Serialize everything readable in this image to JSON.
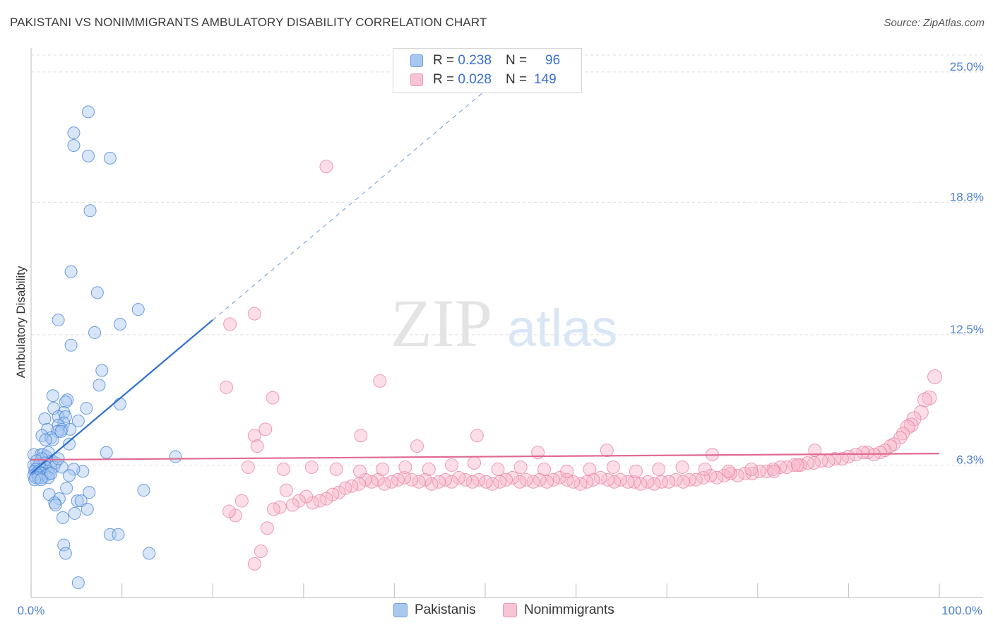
{
  "title": "PAKISTANI VS NONIMMIGRANTS AMBULATORY DISABILITY CORRELATION CHART",
  "source": "Source: ZipAtlas.com",
  "watermark": {
    "zip": "ZIP",
    "atlas": "atlas"
  },
  "legend_top": {
    "rows": [
      {
        "r_label": "R =",
        "r_value": "0.238",
        "n_label": "N =",
        "n_value": "96",
        "color": "#a9c8f0"
      },
      {
        "r_label": "R =",
        "r_value": "0.028",
        "n_label": "N =",
        "n_value": "149",
        "color": "#f7b6ca"
      }
    ]
  },
  "legend_bottom": [
    {
      "label": "Pakistanis",
      "color": "#a9c8f0"
    },
    {
      "label": "Nonimmigrants",
      "color": "#f7b6ca"
    }
  ],
  "chart_data": {
    "type": "scatter",
    "ylabel": "Ambulatory Disability",
    "xlim": [
      0,
      100
    ],
    "ylim": [
      0,
      25.8
    ],
    "x_tick_labels": [
      "0.0%",
      "100.0%"
    ],
    "y_ticks": [
      6.3,
      12.5,
      18.8,
      25.0
    ],
    "y_tick_labels": [
      "6.3%",
      "12.5%",
      "18.8%",
      "25.0%"
    ],
    "grid": "horizontal dashed",
    "colors": {
      "blue": "#4a86d8",
      "blue_fill": "#a9c8f0",
      "pink": "#e8769a",
      "pink_fill": "#f7b6ca"
    },
    "series": [
      {
        "name": "Pakistanis",
        "trend": {
          "x": [
            0,
            20
          ],
          "y": [
            5.9,
            13.2
          ],
          "dashed_to": [
            53,
            25.2
          ]
        },
        "points": [
          [
            6.3,
            23.1
          ],
          [
            4.7,
            22.1
          ],
          [
            4.7,
            21.5
          ],
          [
            6.3,
            21.0
          ],
          [
            8.7,
            20.9
          ],
          [
            6.5,
            18.4
          ],
          [
            4.4,
            15.5
          ],
          [
            7.3,
            14.5
          ],
          [
            11.8,
            13.7
          ],
          [
            3.0,
            13.2
          ],
          [
            9.8,
            13.0
          ],
          [
            7.0,
            12.6
          ],
          [
            4.4,
            12.0
          ],
          [
            7.8,
            10.8
          ],
          [
            7.5,
            10.1
          ],
          [
            2.4,
            9.6
          ],
          [
            4.0,
            9.4
          ],
          [
            3.8,
            9.3
          ],
          [
            9.8,
            9.2
          ],
          [
            2.5,
            9.0
          ],
          [
            6.1,
            9.0
          ],
          [
            3.6,
            8.8
          ],
          [
            1.5,
            8.5
          ],
          [
            3.0,
            8.6
          ],
          [
            3.8,
            8.6
          ],
          [
            5.2,
            8.4
          ],
          [
            3.6,
            8.3
          ],
          [
            3.0,
            8.2
          ],
          [
            1.8,
            8.0
          ],
          [
            3.4,
            8.0
          ],
          [
            4.3,
            8.0
          ],
          [
            2.9,
            7.9
          ],
          [
            3.3,
            7.9
          ],
          [
            1.2,
            7.7
          ],
          [
            2.2,
            7.6
          ],
          [
            2.4,
            7.5
          ],
          [
            1.6,
            7.5
          ],
          [
            4.2,
            7.3
          ],
          [
            8.3,
            6.9
          ],
          [
            0.3,
            6.8
          ],
          [
            1.1,
            6.8
          ],
          [
            1.3,
            6.8
          ],
          [
            1.7,
            6.7
          ],
          [
            1.9,
            6.9
          ],
          [
            1.2,
            6.6
          ],
          [
            0.6,
            6.5
          ],
          [
            2.3,
            6.5
          ],
          [
            2.7,
            6.4
          ],
          [
            1.5,
            6.4
          ],
          [
            0.3,
            6.3
          ],
          [
            0.9,
            6.3
          ],
          [
            2.5,
            6.2
          ],
          [
            1.6,
            6.2
          ],
          [
            3.4,
            6.2
          ],
          [
            0.5,
            6.1
          ],
          [
            1.2,
            6.1
          ],
          [
            1.8,
            6.0
          ],
          [
            0.4,
            6.0
          ],
          [
            0.8,
            6.0
          ],
          [
            1.4,
            5.9
          ],
          [
            0.6,
            5.9
          ],
          [
            1.1,
            5.9
          ],
          [
            2.0,
            5.9
          ],
          [
            0.3,
            5.8
          ],
          [
            0.9,
            5.8
          ],
          [
            1.6,
            5.8
          ],
          [
            0.5,
            5.7
          ],
          [
            1.2,
            5.7
          ],
          [
            0.8,
            5.7
          ],
          [
            1.9,
            5.7
          ],
          [
            0.4,
            5.6
          ],
          [
            1.1,
            5.6
          ],
          [
            5.7,
            6.0
          ],
          [
            15.9,
            6.7
          ],
          [
            4.7,
            6.1
          ],
          [
            3.9,
            5.2
          ],
          [
            6.4,
            5.0
          ],
          [
            12.4,
            5.1
          ],
          [
            2.0,
            4.9
          ],
          [
            3.1,
            4.7
          ],
          [
            5.1,
            4.6
          ],
          [
            5.5,
            4.6
          ],
          [
            2.6,
            4.5
          ],
          [
            2.7,
            4.4
          ],
          [
            6.2,
            4.2
          ],
          [
            4.8,
            4.0
          ],
          [
            3.5,
            3.8
          ],
          [
            8.7,
            3.0
          ],
          [
            9.6,
            3.0
          ],
          [
            3.6,
            2.5
          ],
          [
            3.8,
            2.1
          ],
          [
            13.0,
            2.1
          ],
          [
            5.2,
            0.7
          ],
          [
            3.0,
            6.6
          ],
          [
            2.2,
            5.9
          ],
          [
            4.2,
            5.8
          ]
        ]
      },
      {
        "name": "Nonimmigrants",
        "trend": {
          "x": [
            0,
            100
          ],
          "y": [
            6.55,
            6.85
          ]
        },
        "points": [
          [
            32.5,
            20.5
          ],
          [
            21.9,
            13.0
          ],
          [
            24.6,
            13.5
          ],
          [
            21.5,
            10.0
          ],
          [
            26.6,
            9.5
          ],
          [
            38.4,
            10.3
          ],
          [
            25.8,
            8.0
          ],
          [
            24.6,
            7.7
          ],
          [
            24.9,
            7.2
          ],
          [
            36.3,
            7.7
          ],
          [
            42.5,
            7.2
          ],
          [
            49.1,
            7.7
          ],
          [
            55.8,
            6.9
          ],
          [
            63.4,
            7.0
          ],
          [
            75.0,
            6.8
          ],
          [
            86.3,
            7.0
          ],
          [
            99.5,
            10.5
          ],
          [
            98.9,
            9.5
          ],
          [
            98.4,
            9.4
          ],
          [
            98.0,
            8.8
          ],
          [
            97.2,
            8.5
          ],
          [
            96.9,
            8.2
          ],
          [
            96.5,
            8.1
          ],
          [
            96.0,
            7.8
          ],
          [
            95.7,
            7.6
          ],
          [
            95.0,
            7.3
          ],
          [
            94.6,
            7.2
          ],
          [
            94.0,
            7.0
          ],
          [
            93.5,
            6.9
          ],
          [
            92.8,
            6.8
          ],
          [
            92.1,
            6.9
          ],
          [
            91.6,
            6.9
          ],
          [
            90.8,
            6.8
          ],
          [
            90.0,
            6.7
          ],
          [
            89.3,
            6.6
          ],
          [
            88.5,
            6.6
          ],
          [
            87.8,
            6.5
          ],
          [
            87.0,
            6.5
          ],
          [
            86.2,
            6.4
          ],
          [
            85.5,
            6.4
          ],
          [
            84.7,
            6.3
          ],
          [
            84.0,
            6.3
          ],
          [
            83.2,
            6.2
          ],
          [
            82.5,
            6.2
          ],
          [
            81.7,
            6.1
          ],
          [
            81.0,
            6.0
          ],
          [
            80.2,
            6.0
          ],
          [
            79.4,
            5.9
          ],
          [
            78.6,
            5.9
          ],
          [
            77.8,
            5.8
          ],
          [
            77.0,
            5.9
          ],
          [
            76.3,
            5.8
          ],
          [
            75.5,
            5.7
          ],
          [
            74.8,
            5.8
          ],
          [
            74.0,
            5.7
          ],
          [
            73.2,
            5.6
          ],
          [
            72.5,
            5.6
          ],
          [
            71.8,
            5.5
          ],
          [
            71.0,
            5.6
          ],
          [
            70.2,
            5.5
          ],
          [
            69.4,
            5.5
          ],
          [
            68.6,
            5.4
          ],
          [
            67.9,
            5.5
          ],
          [
            67.1,
            5.4
          ],
          [
            66.4,
            5.5
          ],
          [
            65.7,
            5.5
          ],
          [
            64.9,
            5.6
          ],
          [
            64.2,
            5.5
          ],
          [
            63.5,
            5.6
          ],
          [
            62.7,
            5.7
          ],
          [
            61.9,
            5.6
          ],
          [
            61.2,
            5.5
          ],
          [
            60.5,
            5.4
          ],
          [
            59.7,
            5.5
          ],
          [
            59.0,
            5.6
          ],
          [
            58.2,
            5.7
          ],
          [
            57.5,
            5.6
          ],
          [
            56.8,
            5.5
          ],
          [
            56.0,
            5.6
          ],
          [
            55.3,
            5.5
          ],
          [
            54.5,
            5.6
          ],
          [
            53.8,
            5.5
          ],
          [
            53.0,
            5.7
          ],
          [
            52.3,
            5.6
          ],
          [
            51.6,
            5.5
          ],
          [
            50.8,
            5.4
          ],
          [
            50.1,
            5.5
          ],
          [
            49.3,
            5.6
          ],
          [
            48.6,
            5.5
          ],
          [
            47.8,
            5.6
          ],
          [
            47.1,
            5.7
          ],
          [
            46.3,
            5.5
          ],
          [
            45.6,
            5.6
          ],
          [
            44.9,
            5.5
          ],
          [
            44.1,
            5.4
          ],
          [
            43.4,
            5.6
          ],
          [
            42.7,
            5.5
          ],
          [
            41.9,
            5.6
          ],
          [
            41.1,
            5.7
          ],
          [
            40.4,
            5.6
          ],
          [
            39.7,
            5.5
          ],
          [
            38.9,
            5.4
          ],
          [
            38.2,
            5.6
          ],
          [
            37.5,
            5.5
          ],
          [
            36.8,
            5.6
          ],
          [
            36.1,
            5.4
          ],
          [
            35.3,
            5.3
          ],
          [
            34.6,
            5.2
          ],
          [
            33.9,
            5.0
          ],
          [
            33.2,
            4.9
          ],
          [
            32.5,
            4.7
          ],
          [
            31.8,
            4.6
          ],
          [
            31.0,
            4.5
          ],
          [
            30.3,
            4.8
          ],
          [
            29.5,
            4.6
          ],
          [
            28.8,
            4.4
          ],
          [
            28.1,
            5.1
          ],
          [
            27.4,
            4.3
          ],
          [
            26.7,
            4.2
          ],
          [
            26.0,
            3.3
          ],
          [
            25.3,
            2.2
          ],
          [
            24.6,
            1.6
          ],
          [
            23.9,
            6.2
          ],
          [
            23.2,
            4.6
          ],
          [
            22.5,
            3.9
          ],
          [
            21.8,
            4.1
          ],
          [
            27.8,
            6.1
          ],
          [
            30.9,
            6.2
          ],
          [
            33.6,
            6.1
          ],
          [
            36.2,
            6.0
          ],
          [
            38.7,
            6.1
          ],
          [
            41.2,
            6.2
          ],
          [
            43.8,
            6.1
          ],
          [
            46.3,
            6.3
          ],
          [
            48.8,
            6.4
          ],
          [
            51.4,
            6.1
          ],
          [
            53.9,
            6.2
          ],
          [
            56.5,
            6.1
          ],
          [
            59.0,
            6.0
          ],
          [
            61.5,
            6.1
          ],
          [
            64.1,
            6.2
          ],
          [
            66.6,
            6.0
          ],
          [
            69.1,
            6.1
          ],
          [
            71.7,
            6.2
          ],
          [
            74.2,
            6.1
          ],
          [
            76.8,
            6.0
          ],
          [
            79.3,
            6.1
          ],
          [
            81.8,
            6.0
          ],
          [
            84.4,
            6.3
          ]
        ]
      }
    ]
  }
}
